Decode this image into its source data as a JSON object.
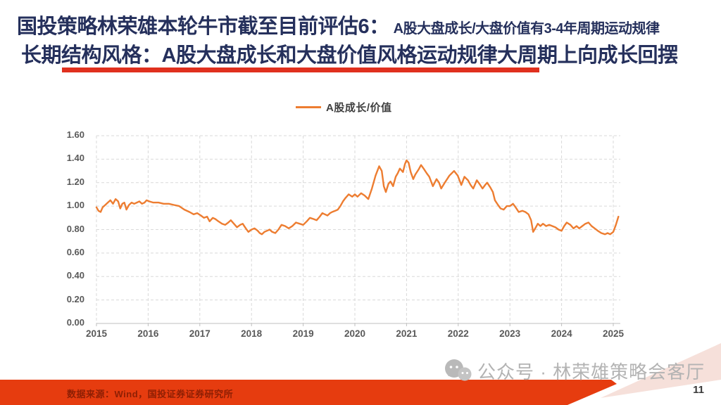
{
  "title": {
    "line1_main": "国投策略林荣雄本轮牛市截至目前评估6：",
    "line1_sub": "A股大盘成长/大盘价值有3-4年周期运动规律",
    "line2": "长期结构风格：A股大盘成长和大盘价值风格运动规律大周期上向成长回摆"
  },
  "chart_data": {
    "type": "line",
    "title": "",
    "xlabel": "",
    "ylabel": "",
    "ylim": [
      0.0,
      1.6
    ],
    "y_tick_labels": [
      "0.00",
      "0.20",
      "0.40",
      "0.60",
      "0.80",
      "1.00",
      "1.20",
      "1.40",
      "1.60"
    ],
    "x_tick_labels": [
      "2015",
      "2016",
      "2017",
      "2018",
      "2019",
      "2020",
      "2021",
      "2022",
      "2023",
      "2024",
      "2025"
    ],
    "grid": "dashed",
    "legend_position": "top-center",
    "series": [
      {
        "name": "A股成长/价值",
        "color": "#ED7D31",
        "points": [
          [
            2015.0,
            0.99
          ],
          [
            2015.04,
            0.96
          ],
          [
            2015.08,
            0.95
          ],
          [
            2015.12,
            0.99
          ],
          [
            2015.17,
            1.01
          ],
          [
            2015.22,
            1.03
          ],
          [
            2015.27,
            1.05
          ],
          [
            2015.32,
            1.02
          ],
          [
            2015.37,
            1.06
          ],
          [
            2015.42,
            1.04
          ],
          [
            2015.46,
            0.98
          ],
          [
            2015.5,
            1.02
          ],
          [
            2015.54,
            1.03
          ],
          [
            2015.58,
            0.97
          ],
          [
            2015.63,
            1.01
          ],
          [
            2015.68,
            1.03
          ],
          [
            2015.73,
            1.02
          ],
          [
            2015.78,
            1.03
          ],
          [
            2015.83,
            1.04
          ],
          [
            2015.88,
            1.02
          ],
          [
            2015.93,
            1.03
          ],
          [
            2015.97,
            1.05
          ],
          [
            2016.02,
            1.04
          ],
          [
            2016.1,
            1.03
          ],
          [
            2016.2,
            1.03
          ],
          [
            2016.3,
            1.02
          ],
          [
            2016.4,
            1.02
          ],
          [
            2016.5,
            1.01
          ],
          [
            2016.6,
            1.0
          ],
          [
            2016.7,
            0.97
          ],
          [
            2016.8,
            0.95
          ],
          [
            2016.88,
            0.93
          ],
          [
            2016.95,
            0.94
          ],
          [
            2017.02,
            0.92
          ],
          [
            2017.08,
            0.9
          ],
          [
            2017.14,
            0.91
          ],
          [
            2017.19,
            0.87
          ],
          [
            2017.25,
            0.9
          ],
          [
            2017.3,
            0.89
          ],
          [
            2017.36,
            0.87
          ],
          [
            2017.43,
            0.85
          ],
          [
            2017.49,
            0.84
          ],
          [
            2017.55,
            0.86
          ],
          [
            2017.6,
            0.88
          ],
          [
            2017.66,
            0.85
          ],
          [
            2017.72,
            0.82
          ],
          [
            2017.78,
            0.84
          ],
          [
            2017.83,
            0.85
          ],
          [
            2017.89,
            0.81
          ],
          [
            2017.94,
            0.78
          ],
          [
            2018.0,
            0.8
          ],
          [
            2018.06,
            0.81
          ],
          [
            2018.12,
            0.79
          ],
          [
            2018.16,
            0.77
          ],
          [
            2018.2,
            0.76
          ],
          [
            2018.25,
            0.78
          ],
          [
            2018.3,
            0.79
          ],
          [
            2018.35,
            0.8
          ],
          [
            2018.4,
            0.78
          ],
          [
            2018.46,
            0.77
          ],
          [
            2018.52,
            0.8
          ],
          [
            2018.58,
            0.84
          ],
          [
            2018.65,
            0.83
          ],
          [
            2018.72,
            0.81
          ],
          [
            2018.79,
            0.83
          ],
          [
            2018.86,
            0.86
          ],
          [
            2018.93,
            0.85
          ],
          [
            2019.0,
            0.84
          ],
          [
            2019.07,
            0.87
          ],
          [
            2019.13,
            0.9
          ],
          [
            2019.2,
            0.89
          ],
          [
            2019.26,
            0.88
          ],
          [
            2019.32,
            0.91
          ],
          [
            2019.37,
            0.94
          ],
          [
            2019.42,
            0.93
          ],
          [
            2019.47,
            0.92
          ],
          [
            2019.52,
            0.94
          ],
          [
            2019.56,
            0.95
          ],
          [
            2019.62,
            0.96
          ],
          [
            2019.67,
            0.97
          ],
          [
            2019.72,
            1.0
          ],
          [
            2019.77,
            1.04
          ],
          [
            2019.82,
            1.07
          ],
          [
            2019.88,
            1.1
          ],
          [
            2019.95,
            1.08
          ],
          [
            2020.0,
            1.1
          ],
          [
            2020.05,
            1.08
          ],
          [
            2020.12,
            1.11
          ],
          [
            2020.19,
            1.09
          ],
          [
            2020.26,
            1.06
          ],
          [
            2020.33,
            1.15
          ],
          [
            2020.4,
            1.26
          ],
          [
            2020.47,
            1.34
          ],
          [
            2020.52,
            1.3
          ],
          [
            2020.56,
            1.17
          ],
          [
            2020.6,
            1.12
          ],
          [
            2020.65,
            1.19
          ],
          [
            2020.69,
            1.21
          ],
          [
            2020.74,
            1.17
          ],
          [
            2020.79,
            1.25
          ],
          [
            2020.83,
            1.28
          ],
          [
            2020.87,
            1.32
          ],
          [
            2020.93,
            1.29
          ],
          [
            2020.97,
            1.36
          ],
          [
            2021.0,
            1.39
          ],
          [
            2021.04,
            1.37
          ],
          [
            2021.08,
            1.29
          ],
          [
            2021.13,
            1.23
          ],
          [
            2021.17,
            1.27
          ],
          [
            2021.23,
            1.31
          ],
          [
            2021.28,
            1.35
          ],
          [
            2021.33,
            1.32
          ],
          [
            2021.39,
            1.28
          ],
          [
            2021.44,
            1.25
          ],
          [
            2021.51,
            1.17
          ],
          [
            2021.58,
            1.23
          ],
          [
            2021.63,
            1.2
          ],
          [
            2021.67,
            1.15
          ],
          [
            2021.74,
            1.2
          ],
          [
            2021.83,
            1.26
          ],
          [
            2021.92,
            1.3
          ],
          [
            2021.99,
            1.26
          ],
          [
            2022.06,
            1.18
          ],
          [
            2022.12,
            1.25
          ],
          [
            2022.19,
            1.22
          ],
          [
            2022.24,
            1.18
          ],
          [
            2022.29,
            1.15
          ],
          [
            2022.36,
            1.22
          ],
          [
            2022.41,
            1.19
          ],
          [
            2022.47,
            1.15
          ],
          [
            2022.52,
            1.18
          ],
          [
            2022.56,
            1.2
          ],
          [
            2022.62,
            1.16
          ],
          [
            2022.67,
            1.12
          ],
          [
            2022.71,
            1.05
          ],
          [
            2022.77,
            1.01
          ],
          [
            2022.82,
            0.98
          ],
          [
            2022.88,
            0.97
          ],
          [
            2022.94,
            1.0
          ],
          [
            2023.0,
            1.0
          ],
          [
            2023.06,
            1.02
          ],
          [
            2023.11,
            0.99
          ],
          [
            2023.17,
            0.95
          ],
          [
            2023.24,
            0.96
          ],
          [
            2023.3,
            0.95
          ],
          [
            2023.36,
            0.93
          ],
          [
            2023.41,
            0.88
          ],
          [
            2023.45,
            0.78
          ],
          [
            2023.49,
            0.81
          ],
          [
            2023.54,
            0.85
          ],
          [
            2023.59,
            0.83
          ],
          [
            2023.64,
            0.85
          ],
          [
            2023.7,
            0.83
          ],
          [
            2023.76,
            0.84
          ],
          [
            2023.82,
            0.83
          ],
          [
            2023.88,
            0.82
          ],
          [
            2023.94,
            0.8
          ],
          [
            2024.0,
            0.79
          ],
          [
            2024.05,
            0.83
          ],
          [
            2024.1,
            0.86
          ],
          [
            2024.17,
            0.84
          ],
          [
            2024.23,
            0.81
          ],
          [
            2024.29,
            0.83
          ],
          [
            2024.34,
            0.81
          ],
          [
            2024.4,
            0.83
          ],
          [
            2024.46,
            0.85
          ],
          [
            2024.52,
            0.86
          ],
          [
            2024.58,
            0.83
          ],
          [
            2024.64,
            0.81
          ],
          [
            2024.7,
            0.79
          ],
          [
            2024.77,
            0.77
          ],
          [
            2024.84,
            0.76
          ],
          [
            2024.89,
            0.77
          ],
          [
            2024.94,
            0.76
          ],
          [
            2025.0,
            0.78
          ],
          [
            2025.05,
            0.84
          ],
          [
            2025.1,
            0.91
          ]
        ]
      }
    ]
  },
  "footer": {
    "source": "数据来源：Wind，国投证券证券研究所",
    "watermark": "公众号 · 林荣雄策略会客厅",
    "page_number": "11"
  },
  "colors": {
    "line_orange": "#ED7D31",
    "title_navy": "#25305c",
    "underline_red": "#e0301e",
    "band_red": "#e63c0f",
    "source_text_red": "#8e1f04",
    "watermark_gray": "#b3b3b3",
    "axis_label_gray": "#595959",
    "gridline_gray": "#d9d9d9"
  }
}
